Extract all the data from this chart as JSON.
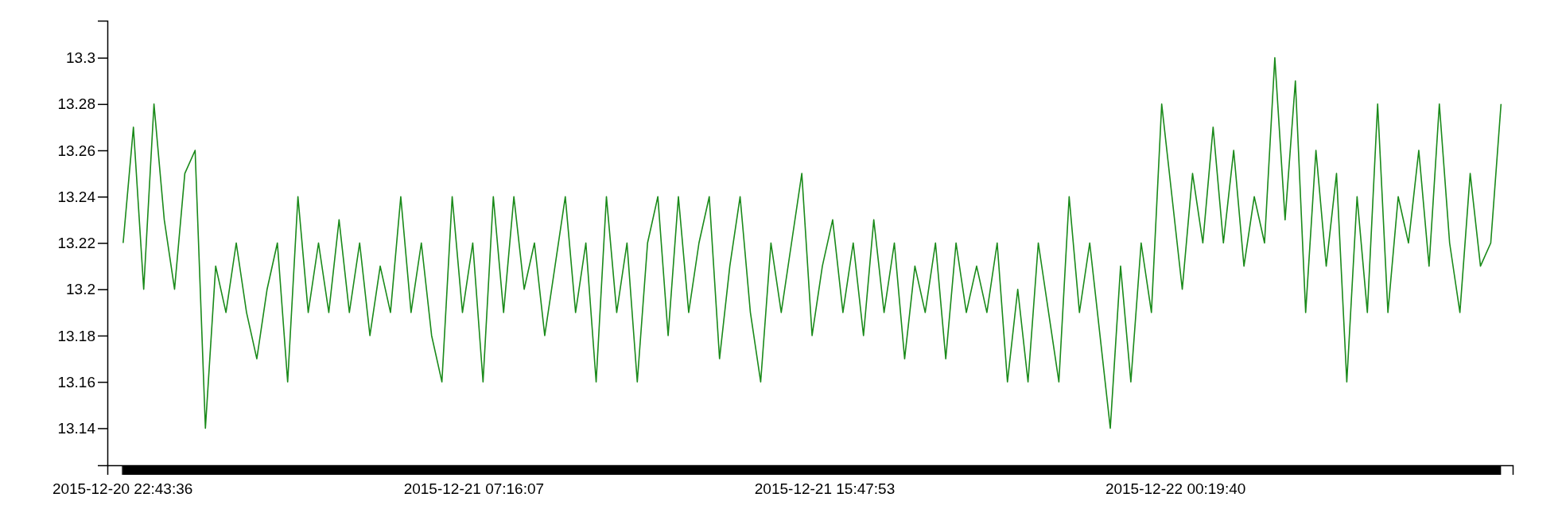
{
  "chart_data": {
    "type": "line",
    "x": [
      "2015-12-20T22:45",
      "2015-12-20T23:00",
      "2015-12-20T23:15",
      "2015-12-20T23:30",
      "2015-12-20T23:45",
      "2015-12-21T00:00",
      "2015-12-21T00:15",
      "2015-12-21T00:30",
      "2015-12-21T00:45",
      "2015-12-21T01:00",
      "2015-12-21T01:15",
      "2015-12-21T01:30",
      "2015-12-21T01:45",
      "2015-12-21T02:00",
      "2015-12-21T02:15",
      "2015-12-21T02:30",
      "2015-12-21T02:45",
      "2015-12-21T03:00",
      "2015-12-21T03:15",
      "2015-12-21T03:30",
      "2015-12-21T03:45",
      "2015-12-21T04:00",
      "2015-12-21T04:15",
      "2015-12-21T04:30",
      "2015-12-21T04:45",
      "2015-12-21T05:00",
      "2015-12-21T05:15",
      "2015-12-21T05:30",
      "2015-12-21T05:45",
      "2015-12-21T06:00",
      "2015-12-21T06:15",
      "2015-12-21T06:30",
      "2015-12-21T06:45",
      "2015-12-21T07:00",
      "2015-12-21T07:15",
      "2015-12-21T07:30",
      "2015-12-21T07:45",
      "2015-12-21T08:00",
      "2015-12-21T08:15",
      "2015-12-21T08:30",
      "2015-12-21T08:45",
      "2015-12-21T09:00",
      "2015-12-21T09:15",
      "2015-12-21T09:30",
      "2015-12-21T09:45",
      "2015-12-21T10:00",
      "2015-12-21T10:15",
      "2015-12-21T10:30",
      "2015-12-21T10:45",
      "2015-12-21T11:00",
      "2015-12-21T11:15",
      "2015-12-21T11:30",
      "2015-12-21T11:45",
      "2015-12-21T12:00",
      "2015-12-21T12:15",
      "2015-12-21T12:30",
      "2015-12-21T12:45",
      "2015-12-21T13:00",
      "2015-12-21T13:15",
      "2015-12-21T13:30",
      "2015-12-21T13:45",
      "2015-12-21T14:00",
      "2015-12-21T14:15",
      "2015-12-21T14:30",
      "2015-12-21T14:45",
      "2015-12-21T15:00",
      "2015-12-21T15:15",
      "2015-12-21T15:30",
      "2015-12-21T15:45",
      "2015-12-21T16:00",
      "2015-12-21T16:15",
      "2015-12-21T16:30",
      "2015-12-21T16:45",
      "2015-12-21T17:00",
      "2015-12-21T17:15",
      "2015-12-21T17:30",
      "2015-12-21T17:45",
      "2015-12-21T18:00",
      "2015-12-21T18:15",
      "2015-12-21T18:30",
      "2015-12-21T18:45",
      "2015-12-21T19:00",
      "2015-12-21T19:15",
      "2015-12-21T19:30",
      "2015-12-21T19:45",
      "2015-12-21T20:00",
      "2015-12-21T20:15",
      "2015-12-21T20:30",
      "2015-12-21T20:45",
      "2015-12-21T21:00",
      "2015-12-21T21:15",
      "2015-12-21T21:30",
      "2015-12-21T21:45",
      "2015-12-21T22:00",
      "2015-12-21T22:15",
      "2015-12-21T22:30",
      "2015-12-21T22:45",
      "2015-12-21T23:00",
      "2015-12-21T23:15",
      "2015-12-21T23:30",
      "2015-12-21T23:45",
      "2015-12-22T00:00",
      "2015-12-22T00:15",
      "2015-12-22T00:30",
      "2015-12-22T00:45",
      "2015-12-22T01:00",
      "2015-12-22T01:15",
      "2015-12-22T01:30",
      "2015-12-22T01:45",
      "2015-12-22T02:00",
      "2015-12-22T02:15",
      "2015-12-22T02:30",
      "2015-12-22T02:45",
      "2015-12-22T03:00",
      "2015-12-22T03:15",
      "2015-12-22T03:30",
      "2015-12-22T03:45",
      "2015-12-22T04:00",
      "2015-12-22T04:15",
      "2015-12-22T04:30",
      "2015-12-22T04:45",
      "2015-12-22T05:00",
      "2015-12-22T05:15",
      "2015-12-22T05:30",
      "2015-12-22T05:45",
      "2015-12-22T06:00",
      "2015-12-22T06:15",
      "2015-12-22T06:30",
      "2015-12-22T06:45",
      "2015-12-22T07:00",
      "2015-12-22T07:15",
      "2015-12-22T07:30",
      "2015-12-22T07:45",
      "2015-12-22T08:00",
      "2015-12-22T08:15"
    ],
    "series": [
      {
        "color": "#1a8a1a",
        "values": [
          13.22,
          13.27,
          13.2,
          13.28,
          13.23,
          13.2,
          13.25,
          13.26,
          13.14,
          13.21,
          13.19,
          13.22,
          13.19,
          13.17,
          13.2,
          13.22,
          13.16,
          13.24,
          13.19,
          13.22,
          13.19,
          13.23,
          13.19,
          13.22,
          13.18,
          13.21,
          13.19,
          13.24,
          13.19,
          13.22,
          13.18,
          13.16,
          13.24,
          13.19,
          13.22,
          13.16,
          13.24,
          13.19,
          13.24,
          13.2,
          13.22,
          13.18,
          13.21,
          13.24,
          13.19,
          13.22,
          13.16,
          13.24,
          13.19,
          13.22,
          13.16,
          13.22,
          13.24,
          13.18,
          13.24,
          13.19,
          13.22,
          13.24,
          13.17,
          13.21,
          13.24,
          13.19,
          13.16,
          13.22,
          13.19,
          13.22,
          13.25,
          13.18,
          13.21,
          13.23,
          13.19,
          13.22,
          13.18,
          13.23,
          13.19,
          13.22,
          13.17,
          13.21,
          13.19,
          13.22,
          13.17,
          13.22,
          13.19,
          13.21,
          13.19,
          13.22,
          13.16,
          13.2,
          13.16,
          13.22,
          13.19,
          13.16,
          13.24,
          13.19,
          13.22,
          13.18,
          13.14,
          13.21,
          13.16,
          13.22,
          13.19,
          13.28,
          13.24,
          13.2,
          13.25,
          13.22,
          13.27,
          13.22,
          13.26,
          13.21,
          13.24,
          13.22,
          13.3,
          13.23,
          13.29,
          13.19,
          13.26,
          13.21,
          13.25,
          13.16,
          13.24,
          13.19,
          13.28,
          13.19,
          13.24,
          13.22,
          13.26,
          13.21,
          13.28,
          13.22,
          13.19,
          13.25,
          13.21,
          13.22,
          13.28
        ]
      }
    ],
    "xlim": [
      "2015-12-20T22:22",
      "2015-12-22T08:32"
    ],
    "xticks": [
      {
        "value": "2015-12-20T22:43:36",
        "label": "2015-12-20 22:43:36"
      },
      {
        "value": "2015-12-21T07:16:07",
        "label": "2015-12-21 07:16:07"
      },
      {
        "value": "2015-12-21T15:47:53",
        "label": "2015-12-21 15:47:53"
      },
      {
        "value": "2015-12-22T00:19:40",
        "label": "2015-12-22 00:19:40"
      }
    ],
    "ylim": [
      13.124,
      13.316
    ],
    "yticks": [
      13.14,
      13.16,
      13.18,
      13.2,
      13.22,
      13.24,
      13.26,
      13.28,
      13.3
    ]
  }
}
